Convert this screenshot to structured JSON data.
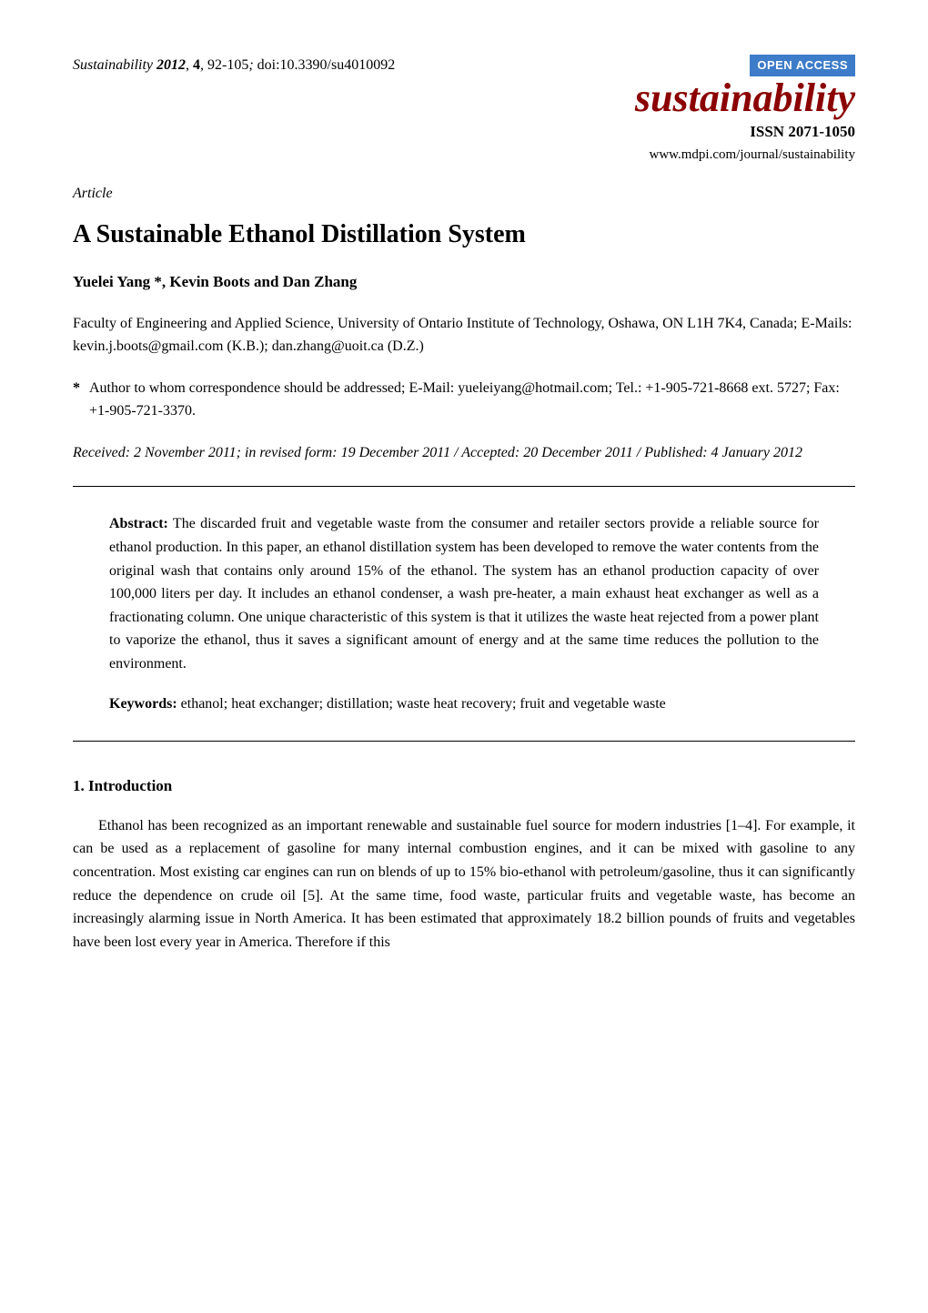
{
  "header": {
    "citation_journal": "Sustainability",
    "citation_year": "2012",
    "citation_volume": "4",
    "citation_pages": "92-105",
    "citation_doi": "doi:10.3390/su4010092",
    "open_access_label": "OPEN ACCESS",
    "journal_logo": "sustainability",
    "issn": "ISSN 2071-1050",
    "journal_url": "www.mdpi.com/journal/sustainability",
    "colors": {
      "open_access_bg": "#3d7cc9",
      "open_access_text": "#ffffff",
      "journal_logo_color": "#8b0000",
      "text_color": "#000000",
      "background_color": "#ffffff",
      "rule_color": "#000000"
    },
    "typography": {
      "body_font": "Times New Roman",
      "body_size_pt": 12,
      "title_size_pt": 20,
      "logo_size_pt": 32,
      "logo_style": "italic bold"
    }
  },
  "article": {
    "type": "Article",
    "title": "A Sustainable Ethanol Distillation System",
    "authors": "Yuelei Yang *, Kevin Boots and Dan Zhang",
    "affiliation": "Faculty of Engineering and Applied Science, University of Ontario Institute of Technology, Oshawa, ON L1H 7K4, Canada; E-Mails: kevin.j.boots@gmail.com (K.B.); dan.zhang@uoit.ca (D.Z.)",
    "correspondence_marker": "*",
    "correspondence": "Author to whom correspondence should be addressed; E-Mail: yueleiyang@hotmail.com; Tel.: +1-905-721-8668 ext. 5727; Fax: +1-905-721-3370.",
    "dates": "Received: 2 November 2011; in revised form: 19 December 2011 / Accepted: 20 December 2011 / Published: 4 January 2012"
  },
  "abstract": {
    "label": "Abstract:",
    "text": " The discarded fruit and vegetable waste from the consumer and retailer sectors provide a reliable source for ethanol production. In this paper, an ethanol distillation system has been developed to remove the water contents from the original wash that contains only around 15% of the ethanol. The system has an ethanol production capacity of over 100,000 liters per day. It includes an ethanol condenser, a wash pre-heater, a main exhaust heat exchanger as well as a fractionating column. One unique characteristic of this system is that it utilizes the waste heat rejected from a power plant to vaporize the ethanol, thus it saves a significant amount of energy and at the same time reduces the pollution to the environment."
  },
  "keywords": {
    "label": "Keywords:",
    "text": " ethanol; heat exchanger; distillation; waste heat recovery; fruit and vegetable waste"
  },
  "section1": {
    "heading": "1. Introduction",
    "body": "Ethanol has been recognized as an important renewable and sustainable fuel source for modern industries [1–4]. For example, it can be used as a replacement of gasoline for many internal combustion engines, and it can be mixed with gasoline to any concentration. Most existing car engines can run on blends of up to 15% bio-ethanol with petroleum/gasoline, thus it can significantly reduce the dependence on crude oil [5]. At the same time, food waste, particular fruits and vegetable waste, has become an increasingly alarming issue in North America. It has been estimated that approximately 18.2 billion pounds of fruits and vegetables have been lost every year in America. Therefore if this"
  }
}
